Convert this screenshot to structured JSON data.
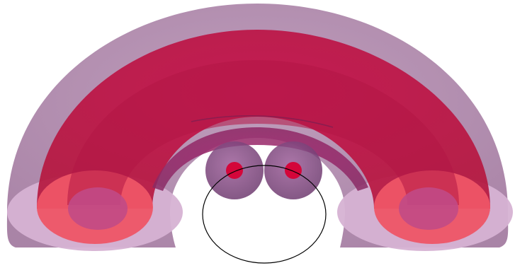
{
  "scene": {
    "description_visible_text": "",
    "colors": {
      "outer_shell": "#a37a9e",
      "outer_shell_cut": "#d6b2d3",
      "middle_shell": "#c31d49",
      "middle_shell_cut": "#f05a6e",
      "inner_shell": "#9c2f74",
      "inner_shell_cut": "#c85a8f",
      "sphere": "#8a4c88",
      "sphere_core": "#d4063a",
      "outline": "#000000"
    },
    "icons": [
      "torus-shell-icon",
      "sphere-icon"
    ]
  }
}
